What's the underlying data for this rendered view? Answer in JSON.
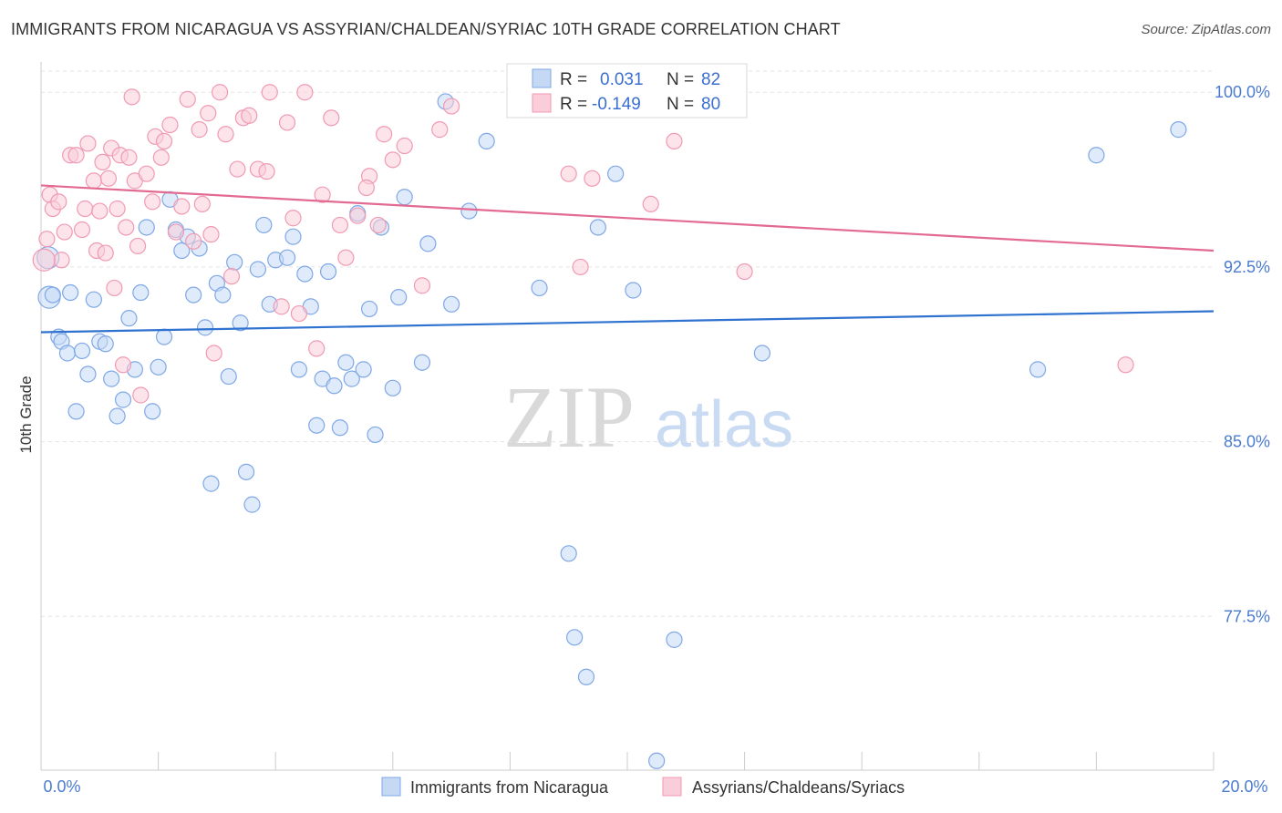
{
  "title": "IMMIGRANTS FROM NICARAGUA VS ASSYRIAN/CHALDEAN/SYRIAC 10TH GRADE CORRELATION CHART",
  "source": "Source: ZipAtlas.com",
  "watermark": {
    "zip": "ZIP",
    "atlas": "atlas"
  },
  "chart_data": {
    "type": "scatter",
    "xlabel": "",
    "ylabel": "10th Grade",
    "xlim": [
      0.0,
      20.0
    ],
    "ylim": [
      70.9,
      101.3
    ],
    "x_tick_labels": [
      "0.0%",
      "20.0%"
    ],
    "y_ticks": [
      100.0,
      92.5,
      85.0,
      77.5
    ],
    "y_tick_labels": [
      "100.0%",
      "92.5%",
      "85.0%",
      "77.5%"
    ],
    "grid": true,
    "legend_position": "top-center",
    "legend": [
      {
        "r_label": "R =",
        "r_value": "0.031",
        "n_label": "N =",
        "n_value": "82"
      },
      {
        "r_label": "R =",
        "r_value": "-0.149",
        "n_label": "N =",
        "n_value": "80"
      }
    ],
    "series": [
      {
        "name": "Immigrants from Nicaragua",
        "color": "#7fa8e6",
        "fill": "#c5d9f5",
        "trend": [
          [
            0.0,
            89.7
          ],
          [
            20.0,
            90.6
          ]
        ],
        "points": [
          [
            0.12,
            92.9
          ],
          [
            0.14,
            91.2
          ],
          [
            0.3,
            89.5
          ],
          [
            0.35,
            89.3
          ],
          [
            0.45,
            88.8
          ],
          [
            0.5,
            91.4
          ],
          [
            0.6,
            86.3
          ],
          [
            0.7,
            88.9
          ],
          [
            0.8,
            87.9
          ],
          [
            0.9,
            91.1
          ],
          [
            1.0,
            89.3
          ],
          [
            1.1,
            89.2
          ],
          [
            1.2,
            87.7
          ],
          [
            1.3,
            86.1
          ],
          [
            1.4,
            86.8
          ],
          [
            1.5,
            90.3
          ],
          [
            1.6,
            88.1
          ],
          [
            1.7,
            91.4
          ],
          [
            1.8,
            94.2
          ],
          [
            1.9,
            86.3
          ],
          [
            2.0,
            88.2
          ],
          [
            2.1,
            89.5
          ],
          [
            2.2,
            95.4
          ],
          [
            2.3,
            94.1
          ],
          [
            2.4,
            93.2
          ],
          [
            2.5,
            93.8
          ],
          [
            2.6,
            91.3
          ],
          [
            2.7,
            93.3
          ],
          [
            2.8,
            89.9
          ],
          [
            2.9,
            83.2
          ],
          [
            3.0,
            91.8
          ],
          [
            3.1,
            91.3
          ],
          [
            3.2,
            87.8
          ],
          [
            3.3,
            92.7
          ],
          [
            3.4,
            90.1
          ],
          [
            3.5,
            83.7
          ],
          [
            3.6,
            82.3
          ],
          [
            3.7,
            92.4
          ],
          [
            3.8,
            94.3
          ],
          [
            3.9,
            90.9
          ],
          [
            4.0,
            92.8
          ],
          [
            4.2,
            92.9
          ],
          [
            4.3,
            93.8
          ],
          [
            4.4,
            88.1
          ],
          [
            4.5,
            92.2
          ],
          [
            4.6,
            90.8
          ],
          [
            4.7,
            85.7
          ],
          [
            4.8,
            87.7
          ],
          [
            4.9,
            92.3
          ],
          [
            5.0,
            87.4
          ],
          [
            5.1,
            85.6
          ],
          [
            5.2,
            88.4
          ],
          [
            5.3,
            87.7
          ],
          [
            5.4,
            94.8
          ],
          [
            5.5,
            88.1
          ],
          [
            5.6,
            90.7
          ],
          [
            5.7,
            85.3
          ],
          [
            5.8,
            94.2
          ],
          [
            6.0,
            87.3
          ],
          [
            6.1,
            91.2
          ],
          [
            6.2,
            95.5
          ],
          [
            6.5,
            88.4
          ],
          [
            6.9,
            99.6
          ],
          [
            7.0,
            90.9
          ],
          [
            7.3,
            94.9
          ],
          [
            7.6,
            97.9
          ],
          [
            8.1,
            100.1
          ],
          [
            8.5,
            91.6
          ],
          [
            9.0,
            80.2
          ],
          [
            9.1,
            76.6
          ],
          [
            9.3,
            74.9
          ],
          [
            9.5,
            94.2
          ],
          [
            9.8,
            96.5
          ],
          [
            10.1,
            91.5
          ],
          [
            10.5,
            71.3
          ],
          [
            10.8,
            76.5
          ],
          [
            12.3,
            88.8
          ],
          [
            17.0,
            88.1
          ],
          [
            18.0,
            97.3
          ],
          [
            19.4,
            98.4
          ],
          [
            0.2,
            91.3
          ],
          [
            6.6,
            93.5
          ]
        ]
      },
      {
        "name": "Assyrians/Chaldeans/Syriacs",
        "color": "#f09ab3",
        "fill": "#f9cdd9",
        "trend": [
          [
            0.0,
            96.0
          ],
          [
            20.0,
            93.2
          ]
        ],
        "points": [
          [
            0.1,
            93.7
          ],
          [
            0.15,
            95.6
          ],
          [
            0.2,
            95.0
          ],
          [
            0.3,
            95.3
          ],
          [
            0.35,
            92.8
          ],
          [
            0.4,
            94.0
          ],
          [
            0.5,
            97.3
          ],
          [
            0.6,
            97.3
          ],
          [
            0.7,
            94.1
          ],
          [
            0.75,
            95.0
          ],
          [
            0.8,
            97.8
          ],
          [
            0.9,
            96.2
          ],
          [
            0.95,
            93.2
          ],
          [
            1.0,
            94.9
          ],
          [
            1.05,
            97.0
          ],
          [
            1.1,
            93.1
          ],
          [
            1.15,
            96.3
          ],
          [
            1.2,
            97.6
          ],
          [
            1.25,
            91.6
          ],
          [
            1.3,
            95.0
          ],
          [
            1.35,
            97.3
          ],
          [
            1.4,
            88.3
          ],
          [
            1.45,
            94.2
          ],
          [
            1.5,
            97.2
          ],
          [
            1.55,
            99.8
          ],
          [
            1.6,
            96.2
          ],
          [
            1.65,
            93.4
          ],
          [
            1.7,
            87.0
          ],
          [
            1.8,
            96.5
          ],
          [
            1.9,
            95.3
          ],
          [
            1.95,
            98.1
          ],
          [
            2.05,
            97.2
          ],
          [
            2.1,
            97.9
          ],
          [
            2.2,
            98.6
          ],
          [
            2.3,
            94.0
          ],
          [
            2.4,
            95.1
          ],
          [
            2.5,
            99.7
          ],
          [
            2.6,
            93.6
          ],
          [
            2.7,
            98.4
          ],
          [
            2.75,
            95.2
          ],
          [
            2.85,
            99.1
          ],
          [
            2.95,
            88.8
          ],
          [
            3.05,
            100.0
          ],
          [
            3.15,
            98.2
          ],
          [
            3.25,
            92.1
          ],
          [
            3.35,
            96.7
          ],
          [
            3.45,
            98.9
          ],
          [
            3.55,
            99.0
          ],
          [
            3.7,
            96.7
          ],
          [
            3.85,
            96.6
          ],
          [
            3.9,
            100.0
          ],
          [
            4.1,
            90.8
          ],
          [
            4.2,
            98.7
          ],
          [
            4.4,
            90.5
          ],
          [
            4.5,
            100.0
          ],
          [
            4.7,
            89.0
          ],
          [
            4.8,
            95.6
          ],
          [
            4.95,
            98.9
          ],
          [
            5.1,
            94.3
          ],
          [
            5.2,
            92.9
          ],
          [
            5.4,
            94.7
          ],
          [
            5.6,
            96.4
          ],
          [
            5.75,
            94.3
          ],
          [
            5.85,
            98.2
          ],
          [
            6.0,
            97.1
          ],
          [
            6.2,
            97.7
          ],
          [
            6.5,
            91.7
          ],
          [
            7.0,
            99.4
          ],
          [
            9.0,
            96.5
          ],
          [
            9.2,
            92.5
          ],
          [
            9.4,
            96.3
          ],
          [
            10.4,
            95.2
          ],
          [
            10.8,
            97.9
          ],
          [
            12.0,
            92.3
          ],
          [
            18.5,
            88.3
          ],
          [
            0.05,
            92.8
          ],
          [
            2.9,
            93.9
          ],
          [
            4.3,
            94.6
          ],
          [
            5.55,
            95.9
          ],
          [
            6.8,
            98.4
          ]
        ]
      }
    ]
  }
}
